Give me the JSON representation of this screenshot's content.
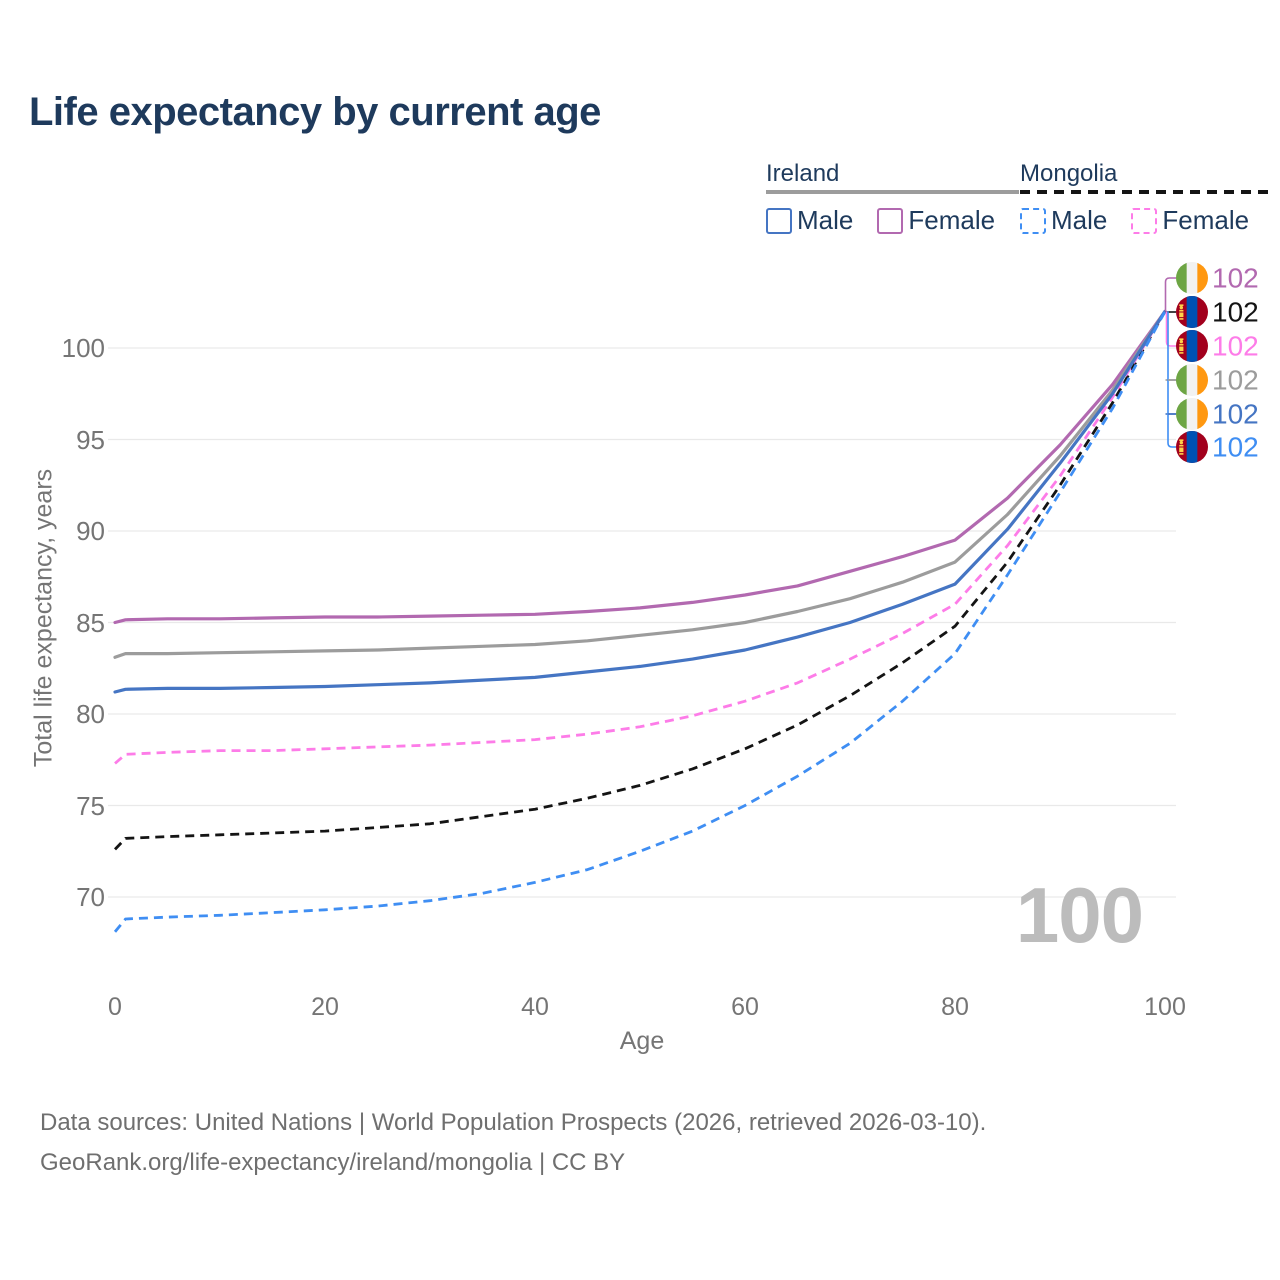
{
  "title": "Life expectancy by current age",
  "watermark": "100",
  "colors": {
    "heading": "#1e3a5c",
    "tick_text": "#757575",
    "grid": "#e9e9e9",
    "watermark": "#bcbcbc",
    "footer_text": "#6f6f6f",
    "background": "#ffffff",
    "ireland_male": "#4575c3",
    "ireland_female": "#b269b0",
    "ireland_both": "#9c9c9c",
    "mongolia_male": "#3f8ef3",
    "mongolia_female": "#fd7ce8",
    "mongolia_both": "#141414",
    "flag_ireland": [
      "#6da544",
      "#f2f2f2",
      "#ff9811"
    ],
    "flag_mongolia": [
      "#a2001d",
      "#0052b4",
      "#ffd24a"
    ]
  },
  "legend": {
    "groups": [
      {
        "title": "Ireland",
        "line_style": "solid",
        "line_color": "#9c9c9c",
        "items": [
          {
            "label": "Male",
            "color": "#4575c3",
            "dash": "solid"
          },
          {
            "label": "Female",
            "color": "#b269b0",
            "dash": "solid"
          }
        ]
      },
      {
        "title": "Mongolia",
        "line_style": "dashed",
        "line_color": "#141414",
        "items": [
          {
            "label": "Male",
            "color": "#3f8ef3",
            "dash": "dashed"
          },
          {
            "label": "Female",
            "color": "#fd7ce8",
            "dash": "dashed"
          }
        ]
      }
    ]
  },
  "footer": {
    "line1": "Data sources: United Nations | World Population Prospects (2026, retrieved 2026-03-10).",
    "line2": "GeoRank.org/life-expectancy/ireland/mongolia | CC BY"
  },
  "chart_data": {
    "type": "line",
    "title": "Life expectancy by current age",
    "xlabel": "Age",
    "ylabel": "Total life expectancy, years",
    "x_ticks": [
      0,
      20,
      40,
      60,
      80,
      100
    ],
    "y_ticks": [
      70,
      75,
      80,
      85,
      90,
      95,
      100
    ],
    "xlim": [
      0,
      100
    ],
    "ylim": [
      67,
      103
    ],
    "grid": "horizontal",
    "ages": [
      0,
      1,
      5,
      10,
      15,
      20,
      25,
      30,
      35,
      40,
      45,
      50,
      55,
      60,
      65,
      70,
      75,
      80,
      85,
      90,
      95,
      100
    ],
    "series": [
      {
        "name": "Ireland Female",
        "country": "Ireland",
        "sex": "Female",
        "flag": "ireland",
        "color": "#b269b0",
        "dash": "solid",
        "end_label": "102",
        "values": [
          85.0,
          85.15,
          85.2,
          85.2,
          85.25,
          85.3,
          85.3,
          85.35,
          85.4,
          85.45,
          85.6,
          85.8,
          86.1,
          86.5,
          87.0,
          87.8,
          88.6,
          89.5,
          91.8,
          94.7,
          98.0,
          102
        ]
      },
      {
        "name": "Mongolia Both sexes",
        "country": "Mongolia",
        "sex": "Both",
        "flag": "mongolia",
        "color": "#141414",
        "dash": "dashed",
        "end_label": "102",
        "values": [
          72.6,
          73.2,
          73.3,
          73.4,
          73.5,
          73.6,
          73.8,
          74.0,
          74.4,
          74.8,
          75.4,
          76.1,
          77.0,
          78.1,
          79.4,
          81.0,
          82.8,
          84.8,
          88.3,
          92.5,
          97.0,
          102
        ]
      },
      {
        "name": "Mongolia Female",
        "country": "Mongolia",
        "sex": "Female",
        "flag": "mongolia",
        "color": "#fd7ce8",
        "dash": "dashed",
        "end_label": "102",
        "values": [
          77.3,
          77.8,
          77.9,
          78.0,
          78.0,
          78.1,
          78.2,
          78.3,
          78.45,
          78.6,
          78.9,
          79.3,
          79.9,
          80.7,
          81.7,
          83.0,
          84.4,
          86.0,
          89.2,
          93.0,
          97.3,
          102
        ]
      },
      {
        "name": "Ireland Both sexes",
        "country": "Ireland",
        "sex": "Both",
        "flag": "ireland",
        "color": "#9c9c9c",
        "dash": "solid",
        "end_label": "102",
        "values": [
          83.1,
          83.3,
          83.3,
          83.35,
          83.4,
          83.45,
          83.5,
          83.6,
          83.7,
          83.8,
          84.0,
          84.3,
          84.6,
          85.0,
          85.6,
          86.3,
          87.2,
          88.3,
          90.9,
          94.1,
          97.7,
          102
        ]
      },
      {
        "name": "Ireland Male",
        "country": "Ireland",
        "sex": "Male",
        "flag": "ireland",
        "color": "#4575c3",
        "dash": "solid",
        "end_label": "102",
        "values": [
          81.2,
          81.35,
          81.4,
          81.4,
          81.45,
          81.5,
          81.6,
          81.7,
          81.85,
          82.0,
          82.3,
          82.6,
          83.0,
          83.5,
          84.2,
          85.0,
          86.0,
          87.1,
          90.1,
          93.7,
          97.5,
          102
        ]
      },
      {
        "name": "Mongolia Male",
        "country": "Mongolia",
        "sex": "Male",
        "flag": "mongolia",
        "color": "#3f8ef3",
        "dash": "dashed",
        "end_label": "102",
        "values": [
          68.1,
          68.8,
          68.9,
          69.0,
          69.15,
          69.3,
          69.5,
          69.8,
          70.2,
          70.8,
          71.5,
          72.5,
          73.6,
          75.0,
          76.6,
          78.4,
          80.7,
          83.3,
          87.6,
          92.1,
          96.7,
          102
        ]
      }
    ]
  }
}
